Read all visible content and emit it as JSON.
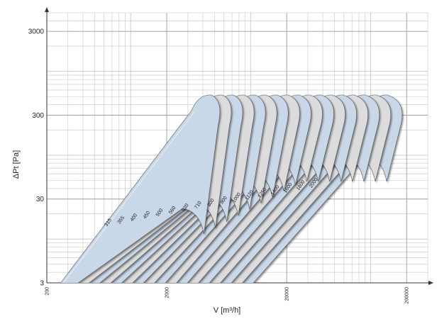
{
  "chart_data": {
    "type": "area",
    "title": "",
    "xlabel": "V [m³/h]",
    "ylabel": "ΔPt [Pa]",
    "x_scale": "log",
    "y_scale": "log",
    "xlim": [
      200,
      300000
    ],
    "ylim": [
      3,
      5000
    ],
    "x_ticks": [
      {
        "value": 200,
        "label": "200"
      },
      {
        "value": 2000,
        "label": "2000"
      },
      {
        "value": 20000,
        "label": "20000"
      },
      {
        "value": 200000,
        "label": "200000"
      }
    ],
    "y_ticks": [
      {
        "value": 3,
        "label": "3"
      },
      {
        "value": 30,
        "label": "30"
      },
      {
        "value": 300,
        "label": "300"
      },
      {
        "value": 3000,
        "label": "3000"
      }
    ],
    "grid": true,
    "series": [
      {
        "name": "315",
        "color": "#c9d8e9"
      },
      {
        "name": "355",
        "color": "#dcdcdc"
      },
      {
        "name": "400",
        "color": "#c9d8e9"
      },
      {
        "name": "450",
        "color": "#dcdcdc"
      },
      {
        "name": "500",
        "color": "#c9d8e9"
      },
      {
        "name": "560",
        "color": "#dcdcdc"
      },
      {
        "name": "630",
        "color": "#c9d8e9"
      },
      {
        "name": "710",
        "color": "#dcdcdc"
      },
      {
        "name": "800",
        "color": "#c9d8e9"
      },
      {
        "name": "900",
        "color": "#dcdcdc"
      },
      {
        "name": "1000",
        "color": "#c9d8e9"
      },
      {
        "name": "1120",
        "color": "#dcdcdc"
      },
      {
        "name": "1250",
        "color": "#c9d8e9"
      },
      {
        "name": "1400",
        "color": "#dcdcdc"
      },
      {
        "name": "1600",
        "color": "#c9d8e9"
      },
      {
        "name": "1800",
        "color": "#dcdcdc"
      },
      {
        "name": "2000",
        "color": "#c9d8e9"
      }
    ]
  }
}
